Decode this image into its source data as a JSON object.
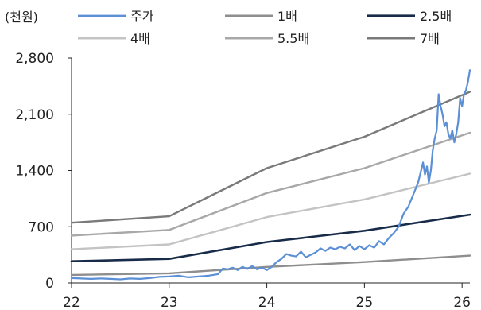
{
  "chart_data": {
    "type": "line",
    "unit_label": "(천원)",
    "x_ticks": [
      22,
      23,
      24,
      25,
      26
    ],
    "xlim": [
      22.0,
      26.08
    ],
    "ylim": [
      0,
      2800
    ],
    "y_ticks": [
      0,
      700,
      1400,
      2100,
      2800
    ],
    "y_tick_labels": [
      "0",
      "700",
      "1,400",
      "2,100",
      "2,800"
    ],
    "grid": false,
    "legend_position": "top",
    "series": [
      {
        "name": "주가",
        "color": "#5b8fd6",
        "width": 2.2,
        "x": [
          22.0,
          22.1,
          22.2,
          22.3,
          22.4,
          22.5,
          22.6,
          22.7,
          22.8,
          22.9,
          23.0,
          23.1,
          23.2,
          23.3,
          23.4,
          23.5,
          23.55,
          23.6,
          23.65,
          23.7,
          23.75,
          23.8,
          23.85,
          23.9,
          23.95,
          24.0,
          24.05,
          24.1,
          24.15,
          24.2,
          24.25,
          24.3,
          24.35,
          24.4,
          24.45,
          24.5,
          24.55,
          24.6,
          24.65,
          24.7,
          24.75,
          24.8,
          24.85,
          24.9,
          24.95,
          25.0,
          25.05,
          25.1,
          25.15,
          25.2,
          25.25,
          25.3,
          25.35,
          25.4,
          25.45,
          25.5,
          25.55,
          25.6,
          25.62,
          25.64,
          25.66,
          25.68,
          25.7,
          25.72,
          25.74,
          25.76,
          25.78,
          25.8,
          25.82,
          25.84,
          25.86,
          25.88,
          25.9,
          25.92,
          25.94,
          25.96,
          25.98,
          26.0,
          26.02,
          26.04,
          26.06,
          26.08
        ],
        "values": [
          60,
          55,
          50,
          55,
          50,
          45,
          55,
          50,
          60,
          75,
          80,
          90,
          70,
          80,
          90,
          110,
          180,
          170,
          190,
          160,
          200,
          175,
          210,
          170,
          190,
          160,
          200,
          260,
          300,
          360,
          340,
          330,
          390,
          320,
          350,
          380,
          430,
          400,
          440,
          420,
          450,
          430,
          480,
          410,
          460,
          420,
          470,
          440,
          520,
          480,
          560,
          620,
          700,
          860,
          950,
          1100,
          1250,
          1500,
          1350,
          1450,
          1250,
          1400,
          1650,
          1800,
          1900,
          2350,
          2200,
          2100,
          1950,
          2000,
          1850,
          1800,
          1900,
          1750,
          1850,
          2000,
          2300,
          2200,
          2350,
          2400,
          2500,
          2650
        ]
      },
      {
        "name": "1배",
        "color": "#8e8e8e",
        "width": 2.4,
        "x": [
          22.0,
          23.0,
          24.0,
          25.0,
          26.08
        ],
        "values": [
          100,
          120,
          200,
          260,
          340
        ]
      },
      {
        "name": "2.5배",
        "color": "#182c4a",
        "width": 2.6,
        "x": [
          22.0,
          23.0,
          24.0,
          25.0,
          26.08
        ],
        "values": [
          270,
          300,
          510,
          650,
          850
        ]
      },
      {
        "name": "4배",
        "color": "#c4c4c4",
        "width": 2.4,
        "x": [
          22.0,
          23.0,
          24.0,
          25.0,
          26.08
        ],
        "values": [
          420,
          480,
          820,
          1040,
          1360
        ]
      },
      {
        "name": "5.5배",
        "color": "#a8a8a8",
        "width": 2.4,
        "x": [
          22.0,
          23.0,
          24.0,
          25.0,
          26.08
        ],
        "values": [
          590,
          660,
          1120,
          1430,
          1870
        ]
      },
      {
        "name": "7배",
        "color": "#7a7a7a",
        "width": 2.4,
        "x": [
          22.0,
          23.0,
          24.0,
          25.0,
          26.08
        ],
        "values": [
          750,
          830,
          1430,
          1820,
          2380
        ]
      }
    ]
  }
}
